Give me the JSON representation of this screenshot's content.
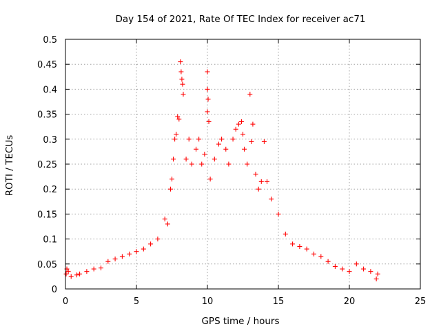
{
  "chart_data": {
    "type": "scatter",
    "title": "Day 154 of 2021, Rate Of TEC Index for receiver ac71",
    "xlabel": "GPS time / hours",
    "ylabel": "ROTI / TECUs",
    "xlim": [
      0,
      25
    ],
    "ylim": [
      0,
      0.5
    ],
    "x_ticks": [
      0,
      5,
      10,
      15,
      20,
      25
    ],
    "y_ticks": [
      0,
      0.05,
      0.1,
      0.15,
      0.2,
      0.25,
      0.3,
      0.35,
      0.4,
      0.45,
      0.5
    ],
    "x_tick_labels": [
      "0",
      "5",
      "10",
      "15",
      "20",
      "25"
    ],
    "y_tick_labels": [
      "0",
      "0.05",
      "0.1",
      "0.15",
      "0.2",
      "0.25",
      "0.3",
      "0.35",
      "0.4",
      "0.45",
      "0.5"
    ],
    "grid": true,
    "marker": "plus",
    "color": "#ff0000",
    "points": [
      [
        0.1,
        0.04
      ],
      [
        0.2,
        0.035
      ],
      [
        0.05,
        0.03
      ],
      [
        0.4,
        0.025
      ],
      [
        0.8,
        0.028
      ],
      [
        1.0,
        0.03
      ],
      [
        1.5,
        0.035
      ],
      [
        2.0,
        0.04
      ],
      [
        2.5,
        0.042
      ],
      [
        3.0,
        0.055
      ],
      [
        3.5,
        0.06
      ],
      [
        4.0,
        0.065
      ],
      [
        4.5,
        0.07
      ],
      [
        5.0,
        0.075
      ],
      [
        5.5,
        0.08
      ],
      [
        6.0,
        0.09
      ],
      [
        6.5,
        0.1
      ],
      [
        7.0,
        0.14
      ],
      [
        7.2,
        0.13
      ],
      [
        7.4,
        0.2
      ],
      [
        7.5,
        0.22
      ],
      [
        7.6,
        0.26
      ],
      [
        7.7,
        0.3
      ],
      [
        7.8,
        0.31
      ],
      [
        7.9,
        0.345
      ],
      [
        8.0,
        0.34
      ],
      [
        8.1,
        0.455
      ],
      [
        8.15,
        0.435
      ],
      [
        8.2,
        0.42
      ],
      [
        8.25,
        0.41
      ],
      [
        8.3,
        0.39
      ],
      [
        8.5,
        0.26
      ],
      [
        8.7,
        0.3
      ],
      [
        8.9,
        0.25
      ],
      [
        9.2,
        0.28
      ],
      [
        9.4,
        0.3
      ],
      [
        9.6,
        0.25
      ],
      [
        9.8,
        0.27
      ],
      [
        10.0,
        0.435
      ],
      [
        10.0,
        0.4
      ],
      [
        10.05,
        0.38
      ],
      [
        10.0,
        0.355
      ],
      [
        10.1,
        0.335
      ],
      [
        10.2,
        0.22
      ],
      [
        10.5,
        0.26
      ],
      [
        10.8,
        0.29
      ],
      [
        11.0,
        0.3
      ],
      [
        11.3,
        0.28
      ],
      [
        11.5,
        0.25
      ],
      [
        11.8,
        0.3
      ],
      [
        12.0,
        0.32
      ],
      [
        12.2,
        0.33
      ],
      [
        12.4,
        0.335
      ],
      [
        12.5,
        0.31
      ],
      [
        12.6,
        0.28
      ],
      [
        12.8,
        0.25
      ],
      [
        13.0,
        0.39
      ],
      [
        13.1,
        0.295
      ],
      [
        13.2,
        0.33
      ],
      [
        13.4,
        0.23
      ],
      [
        13.6,
        0.2
      ],
      [
        13.8,
        0.215
      ],
      [
        14.0,
        0.295
      ],
      [
        14.2,
        0.215
      ],
      [
        14.5,
        0.18
      ],
      [
        15.0,
        0.15
      ],
      [
        15.5,
        0.11
      ],
      [
        16.0,
        0.09
      ],
      [
        16.5,
        0.085
      ],
      [
        17.0,
        0.08
      ],
      [
        17.5,
        0.07
      ],
      [
        18.0,
        0.065
      ],
      [
        18.5,
        0.055
      ],
      [
        19.0,
        0.045
      ],
      [
        19.5,
        0.04
      ],
      [
        20.0,
        0.035
      ],
      [
        20.5,
        0.05
      ],
      [
        21.0,
        0.04
      ],
      [
        21.5,
        0.035
      ],
      [
        22.0,
        0.03
      ],
      [
        21.9,
        0.02
      ]
    ]
  }
}
